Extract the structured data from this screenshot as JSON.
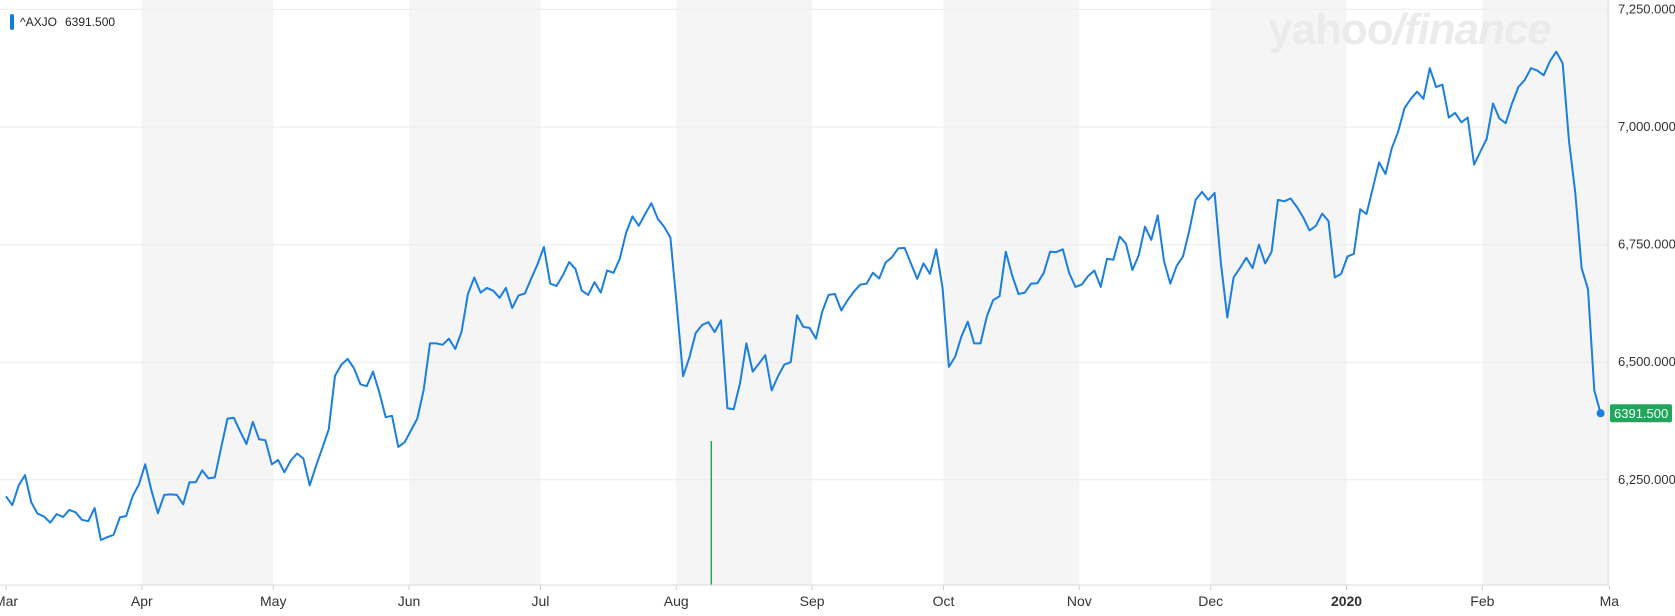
{
  "legend": {
    "symbol": "^AXJO",
    "value": "6391.500",
    "color": "#0e7ee0"
  },
  "brand": {
    "part1": "yahoo",
    "part2": "/",
    "part3": "finance"
  },
  "colors": {
    "line": "#1a7fe0",
    "band": "#f5f5f5",
    "grid": "#ececec",
    "last_badge": "#21a55b",
    "volume": "#21a55b"
  },
  "chart_data": {
    "type": "line",
    "series": [
      {
        "name": "^AXJO",
        "x_start": "2019-03-01",
        "x_end": "2020-02-28",
        "values": [
          6215,
          6196,
          6238,
          6260,
          6202,
          6178,
          6172,
          6159,
          6177,
          6171,
          6186,
          6181,
          6165,
          6162,
          6190,
          6122,
          6128,
          6133,
          6170,
          6173,
          6215,
          6240,
          6283,
          6227,
          6179,
          6218,
          6219,
          6218,
          6198,
          6245,
          6245,
          6270,
          6253,
          6255,
          6318,
          6380,
          6382,
          6353,
          6326,
          6373,
          6336,
          6334,
          6283,
          6292,
          6266,
          6291,
          6306,
          6295,
          6238,
          6280,
          6318,
          6357,
          6471,
          6495,
          6507,
          6487,
          6453,
          6449,
          6480,
          6436,
          6383,
          6386,
          6320,
          6330,
          6355,
          6380,
          6440,
          6540,
          6540,
          6537,
          6550,
          6528,
          6565,
          6645,
          6680,
          6648,
          6658,
          6652,
          6637,
          6658,
          6615,
          6642,
          6646,
          6678,
          6708,
          6745,
          6667,
          6662,
          6685,
          6713,
          6698,
          6652,
          6643,
          6670,
          6648,
          6695,
          6690,
          6720,
          6775,
          6810,
          6790,
          6815,
          6838,
          6805,
          6788,
          6765,
          6620,
          6470,
          6510,
          6562,
          6579,
          6585,
          6564,
          6589,
          6402,
          6400,
          6455,
          6540,
          6480,
          6497,
          6515,
          6440,
          6470,
          6495,
          6500,
          6600,
          6575,
          6573,
          6550,
          6608,
          6643,
          6645,
          6610,
          6632,
          6650,
          6665,
          6667,
          6690,
          6678,
          6712,
          6723,
          6742,
          6743,
          6710,
          6677,
          6710,
          6688,
          6740,
          6659,
          6490,
          6512,
          6555,
          6586,
          6540,
          6540,
          6597,
          6632,
          6640,
          6735,
          6685,
          6645,
          6648,
          6667,
          6668,
          6690,
          6735,
          6734,
          6740,
          6690,
          6660,
          6665,
          6683,
          6695,
          6660,
          6720,
          6718,
          6767,
          6752,
          6696,
          6727,
          6788,
          6760,
          6812,
          6715,
          6667,
          6705,
          6725,
          6780,
          6845,
          6862,
          6845,
          6860,
          6710,
          6595,
          6680,
          6700,
          6722,
          6700,
          6750,
          6710,
          6735,
          6845,
          6842,
          6848,
          6830,
          6808,
          6780,
          6790,
          6816,
          6800,
          6680,
          6688,
          6725,
          6730,
          6825,
          6815,
          6870,
          6925,
          6900,
          6955,
          6990,
          7040,
          7060,
          7075,
          7060,
          7125,
          7085,
          7090,
          7020,
          7030,
          7010,
          7020,
          6920,
          6948,
          6975,
          7050,
          7018,
          7008,
          7050,
          7085,
          7100,
          7125,
          7120,
          7110,
          7140,
          7160,
          7135,
          6970,
          6860,
          6700,
          6655,
          6440,
          6391.5
        ]
      }
    ],
    "x_ticks": [
      "Mar",
      "Apr",
      "May",
      "Jun",
      "Jul",
      "Aug",
      "Sep",
      "Oct",
      "Nov",
      "Dec",
      "2020",
      "Feb",
      "Ma"
    ],
    "y_ticks": [
      "7,250.000",
      "7,000.000",
      "6,750.000",
      "6,500.000",
      "6,250.000"
    ],
    "y_tick_values": [
      7250,
      7000,
      6750,
      6500,
      6250
    ],
    "ylim": [
      6000,
      7250
    ],
    "last_value_label": "6391.500",
    "last_value": 6391.5,
    "grid": true,
    "alternating_month_bands": true,
    "volume_bar": {
      "date": "2019-08-09"
    }
  }
}
